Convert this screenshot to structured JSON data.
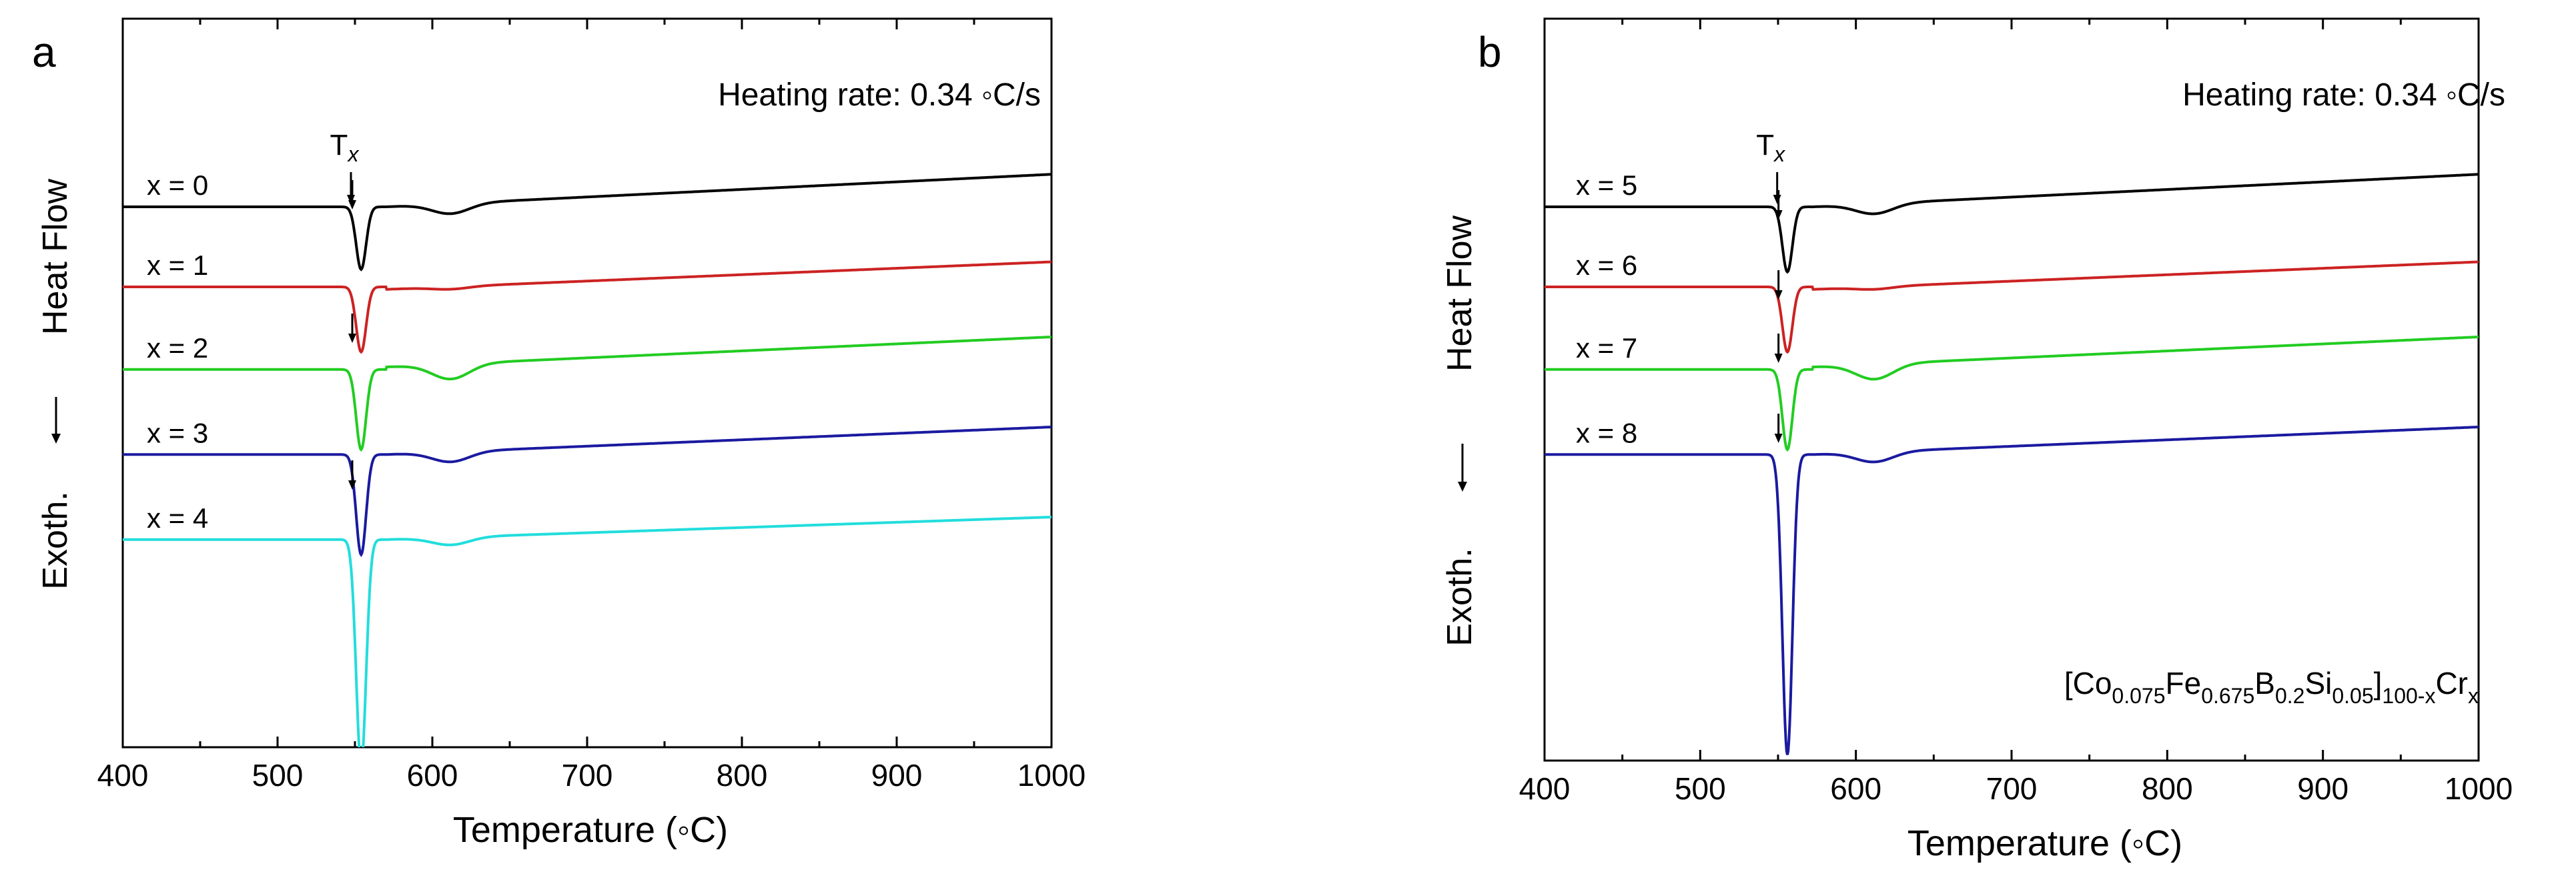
{
  "chart_data": [
    {
      "panel_label": "a",
      "type": "line",
      "title": "",
      "xlabel": "Temperature (◦C)",
      "ylabel_top": "Heat Flow",
      "ylabel_bottom": "Exoth.",
      "xlim": [
        400,
        1000
      ],
      "x_ticks": [
        400,
        500,
        600,
        700,
        800,
        900,
        1000
      ],
      "x_tick_labels": [
        "400",
        "500",
        "600",
        "700",
        "800",
        "900",
        "1000"
      ],
      "y_ticks": false,
      "grid": false,
      "annotation": "Heating rate: 0.34 ◦C/s",
      "tx_label": {
        "main": "T",
        "sub": "x"
      },
      "tx_value": 550,
      "series": [
        {
          "name": "x = 0",
          "color": "#000000",
          "baseline": 0.0,
          "end_offset": 0.65,
          "dip_depth": 1.25,
          "bump_depth": 0.2,
          "recovery_level": 0.0
        },
        {
          "name": "x = 1",
          "color": "#cc2222",
          "baseline": -1.6,
          "end_offset": 0.55,
          "dip_depth": 1.3,
          "bump_depth": 0.05,
          "recovery_level": -0.05
        },
        {
          "name": "x = 2",
          "color": "#22cc22",
          "baseline": -3.25,
          "end_offset": 0.6,
          "dip_depth": 1.6,
          "bump_depth": 0.3,
          "recovery_level": 0.05
        },
        {
          "name": "x = 3",
          "color": "#1a1aa0",
          "baseline": -4.95,
          "end_offset": 0.55,
          "dip_depth": 2.0,
          "bump_depth": 0.2,
          "recovery_level": 0.0
        },
        {
          "name": "x = 4",
          "color": "#22dddd",
          "baseline": -6.65,
          "end_offset": 0.45,
          "dip_depth": 4.5,
          "bump_depth": 0.15,
          "recovery_level": 0.0
        }
      ]
    },
    {
      "panel_label": "b",
      "type": "line",
      "title": "",
      "xlabel": "Temperature (◦C)",
      "ylabel_top": "Heat Flow",
      "ylabel_bottom": "Exoth.",
      "xlim": [
        400,
        1000
      ],
      "x_ticks": [
        400,
        500,
        600,
        700,
        800,
        900,
        1000
      ],
      "x_tick_labels": [
        "400",
        "500",
        "600",
        "700",
        "800",
        "900",
        "1000"
      ],
      "y_ticks": false,
      "grid": false,
      "annotation": "Heating rate: 0.34 ◦C/s",
      "composition": {
        "parts": [
          "[Co",
          "0.075",
          "Fe",
          "0.675",
          "B",
          "0.2",
          "Si",
          "0.05",
          "]",
          "100-x",
          "Cr",
          "x"
        ]
      },
      "tx_label": {
        "main": "T",
        "sub": "x"
      },
      "tx_value": 552,
      "series": [
        {
          "name": "x = 5",
          "color": "#000000",
          "baseline": 0.0,
          "end_offset": 0.65,
          "dip_depth": 1.3,
          "bump_depth": 0.2,
          "recovery_level": 0.0
        },
        {
          "name": "x = 6",
          "color": "#cc2222",
          "baseline": -1.6,
          "end_offset": 0.55,
          "dip_depth": 1.3,
          "bump_depth": 0.05,
          "recovery_level": -0.05
        },
        {
          "name": "x = 7",
          "color": "#22cc22",
          "baseline": -3.25,
          "end_offset": 0.6,
          "dip_depth": 1.6,
          "bump_depth": 0.3,
          "recovery_level": 0.05
        },
        {
          "name": "x = 8",
          "color": "#1a1aa0",
          "baseline": -4.95,
          "end_offset": 0.55,
          "dip_depth": 6.0,
          "bump_depth": 0.2,
          "recovery_level": 0.0
        }
      ]
    }
  ]
}
